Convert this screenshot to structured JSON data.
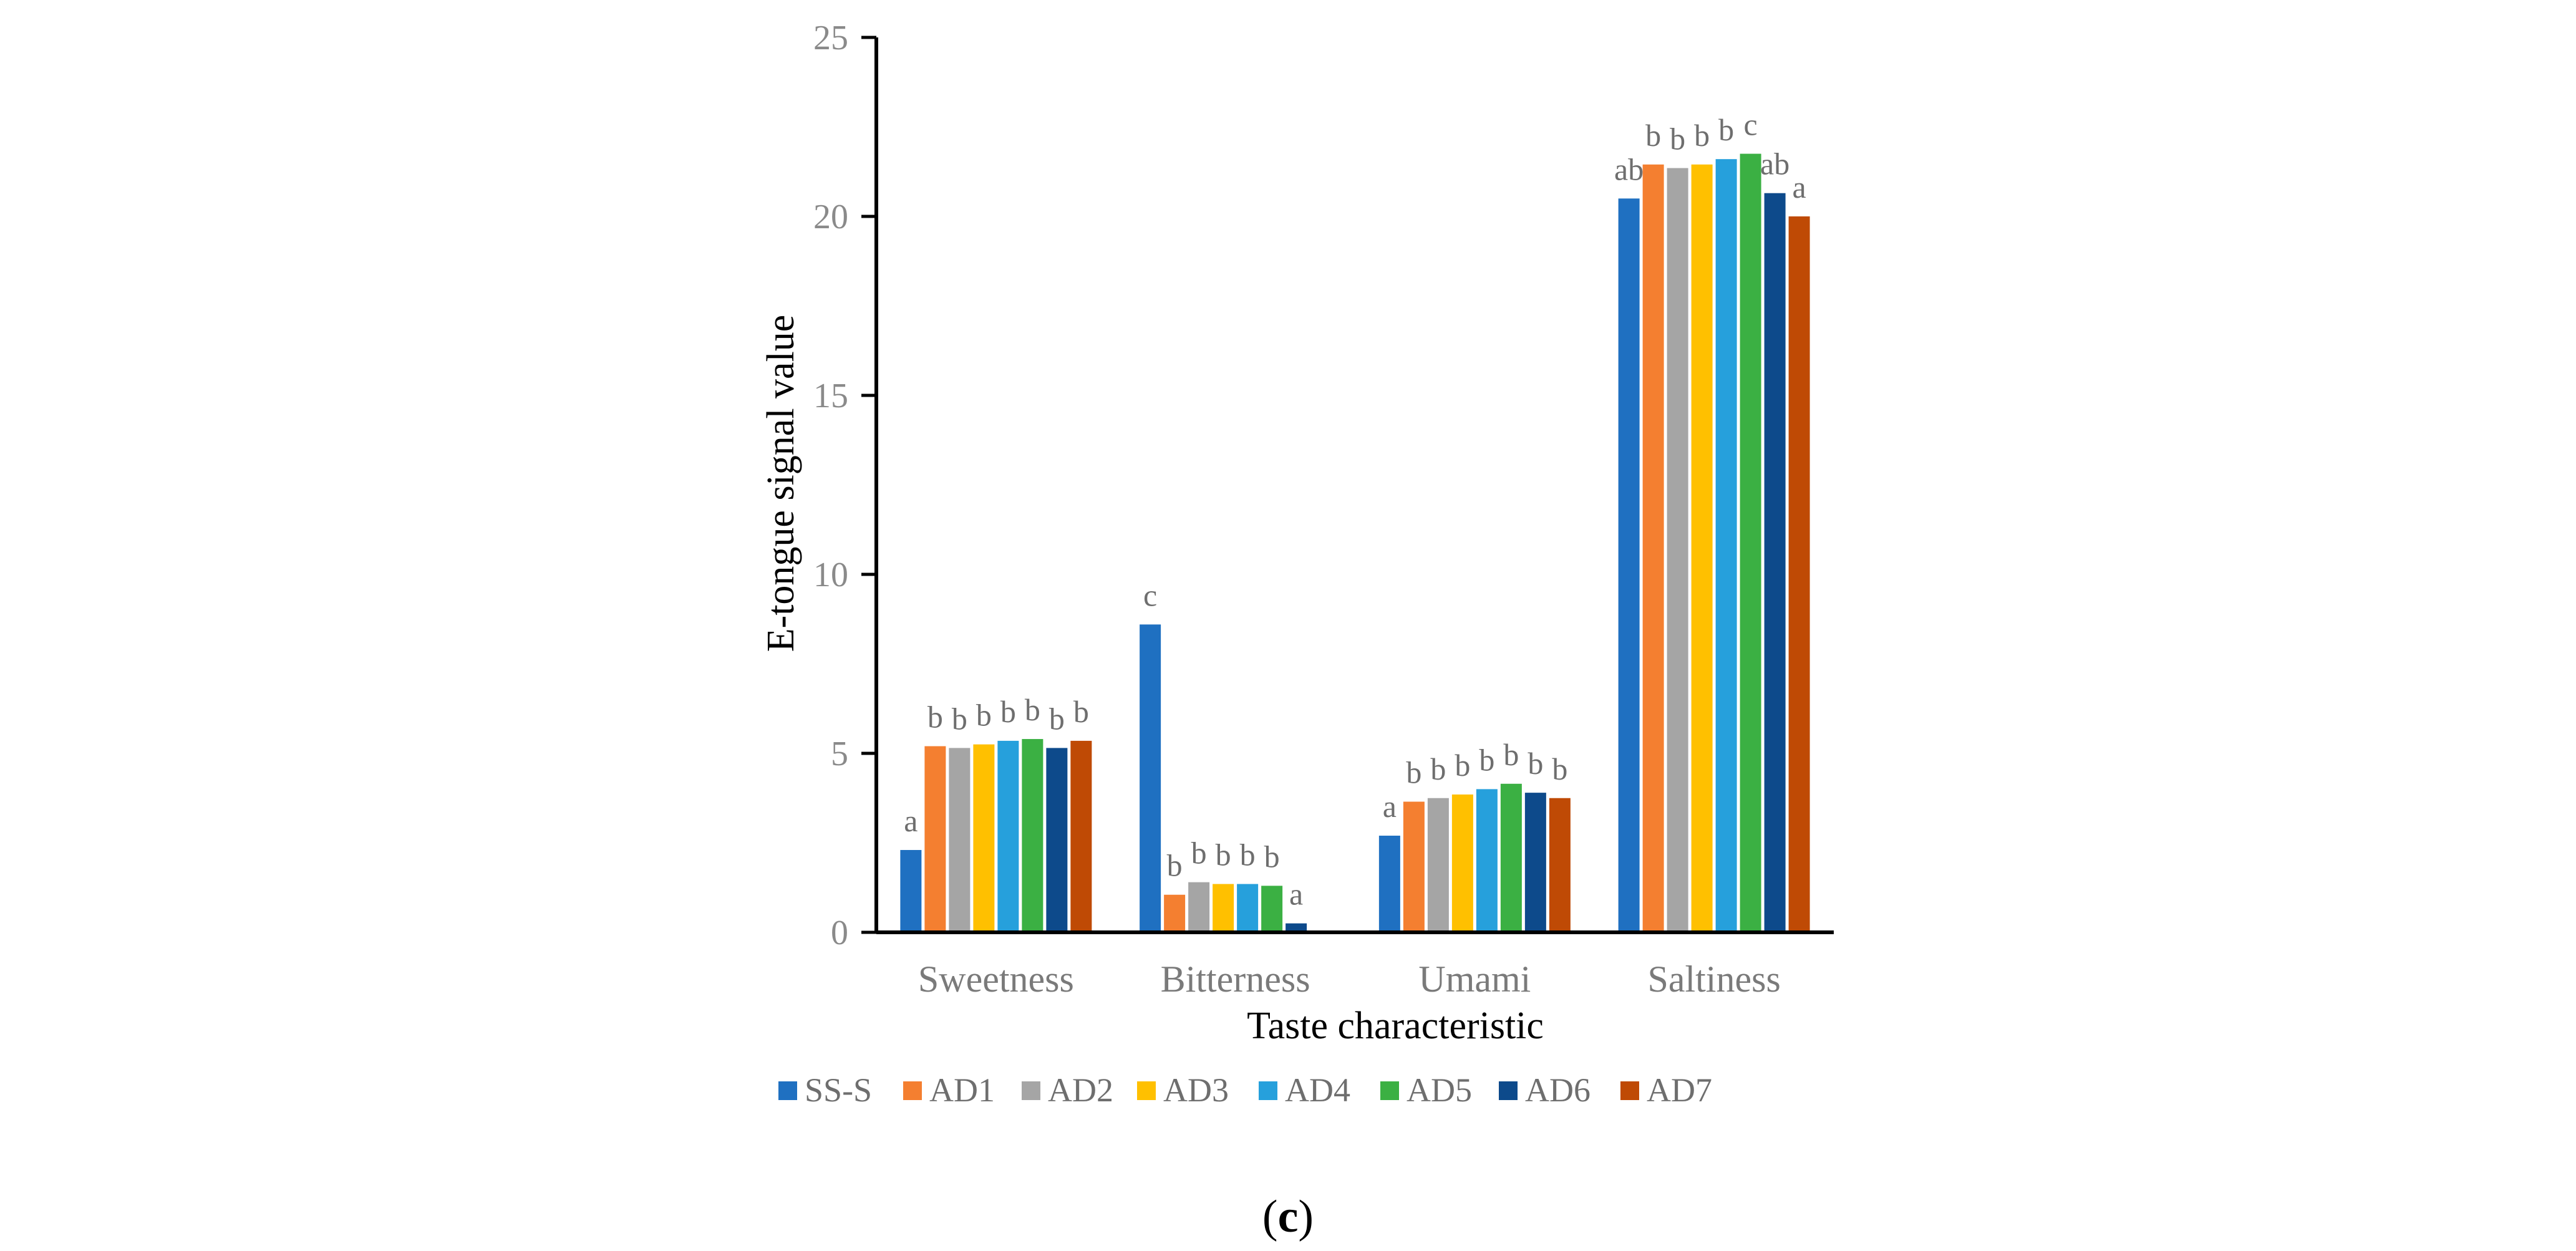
{
  "chart_data": {
    "type": "bar",
    "title": "",
    "xlabel": "Taste characteristic",
    "ylabel": "E-tongue signal value",
    "ylim": [
      0,
      25
    ],
    "yticks": [
      0,
      5,
      10,
      15,
      20,
      25
    ],
    "grid": false,
    "legend_position": "bottom",
    "categories": [
      "Sweetness",
      "Bitterness",
      "Umami",
      "Saltiness"
    ],
    "series": [
      {
        "name": "SS-S",
        "color": "#1f70c1",
        "values": [
          2.3,
          8.6,
          2.7,
          20.5
        ],
        "labels": [
          "a",
          "c",
          "a",
          "ab"
        ]
      },
      {
        "name": "AD1",
        "color": "#f47f30",
        "values": [
          5.2,
          1.05,
          3.65,
          21.45
        ],
        "labels": [
          "b",
          "b",
          "b",
          "b"
        ]
      },
      {
        "name": "AD2",
        "color": "#a5a5a5",
        "values": [
          5.15,
          1.4,
          3.75,
          21.35
        ],
        "labels": [
          "b",
          "b",
          "b",
          "b"
        ]
      },
      {
        "name": "AD3",
        "color": "#ffc000",
        "values": [
          5.25,
          1.35,
          3.85,
          21.45
        ],
        "labels": [
          "b",
          "b",
          "b",
          "b"
        ]
      },
      {
        "name": "AD4",
        "color": "#26a0dc",
        "values": [
          5.35,
          1.35,
          4.0,
          21.6
        ],
        "labels": [
          "b",
          "b",
          "b",
          "b"
        ]
      },
      {
        "name": "AD5",
        "color": "#3bb043",
        "values": [
          5.4,
          1.3,
          4.15,
          21.75
        ],
        "labels": [
          "b",
          "b",
          "b",
          "c"
        ]
      },
      {
        "name": "AD6",
        "color": "#0d4a8b",
        "values": [
          5.15,
          0.25,
          3.9,
          20.65
        ],
        "labels": [
          "b",
          "a",
          "b",
          "ab"
        ]
      },
      {
        "name": "AD7",
        "color": "#bf4a05",
        "values": [
          5.35,
          null,
          3.75,
          20.0
        ],
        "labels": [
          "b",
          "",
          "b",
          "a"
        ]
      }
    ]
  },
  "panel_label": {
    "open": "(",
    "letter": "c",
    "close": ")"
  }
}
